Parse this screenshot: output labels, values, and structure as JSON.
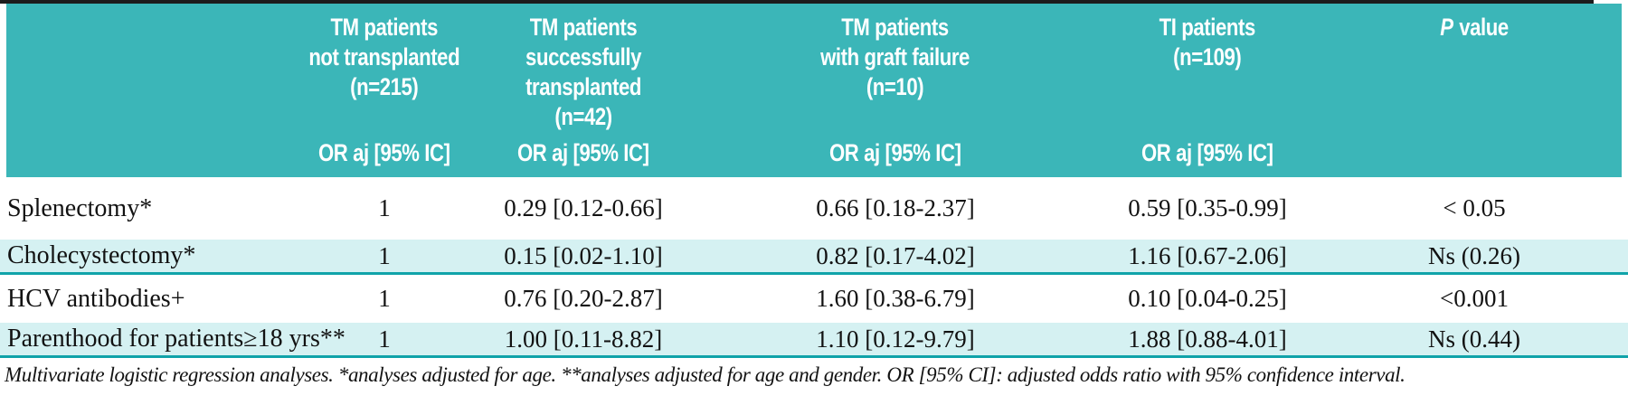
{
  "colors": {
    "header_bg": "#3bb6b8",
    "shaded_row_bg": "#d5f1f2",
    "divider_teal": "#10a3a9",
    "top_rule": "#1c1c1c",
    "header_text": "#ffffff",
    "body_text": "#121212"
  },
  "header": {
    "columns": [
      {
        "title": "TM patients\nnot transplanted\n(n=215)",
        "measure": "OR aj [95% IC]"
      },
      {
        "title": "TM patients\nsuccessfully\ntransplanted\n(n=42)",
        "measure": "OR aj [95% IC]"
      },
      {
        "title": "TM patients\nwith graft failure\n(n=10)",
        "measure": "OR aj [95% IC]"
      },
      {
        "title": "TI patients\n(n=109)",
        "measure": "OR aj [95% IC]"
      },
      {
        "title_italic": "P",
        "title_rest": "value"
      }
    ]
  },
  "rows": [
    {
      "label": "Splenectomy*",
      "values": [
        "1",
        "0.29 [0.12-0.66]",
        "0.66 [0.18-2.37]",
        "0.59 [0.35-0.99]",
        "< 0.05"
      ]
    },
    {
      "label": "Cholecystectomy*",
      "values": [
        "1",
        "0.15 [0.02-1.10]",
        "0.82 [0.17-4.02]",
        "1.16 [0.67-2.06]",
        "Ns (0.26)"
      ]
    },
    {
      "label": "HCV antibodies+",
      "values": [
        "1",
        "0.76 [0.20-2.87]",
        "1.60 [0.38-6.79]",
        "0.10 [0.04-0.25]",
        "<0.001"
      ]
    },
    {
      "label": "Parenthood for patients≥18 yrs**",
      "values": [
        "1",
        "1.00 [0.11-8.82]",
        "1.10 [0.12-9.79]",
        "1.88 [0.88-4.01]",
        "Ns (0.44)"
      ]
    }
  ],
  "footnote": "Multivariate logistic regression analyses. *analyses adjusted for age. **analyses adjusted for age and gender. OR [95% CI]: adjusted odds ratio with 95% confidence interval."
}
